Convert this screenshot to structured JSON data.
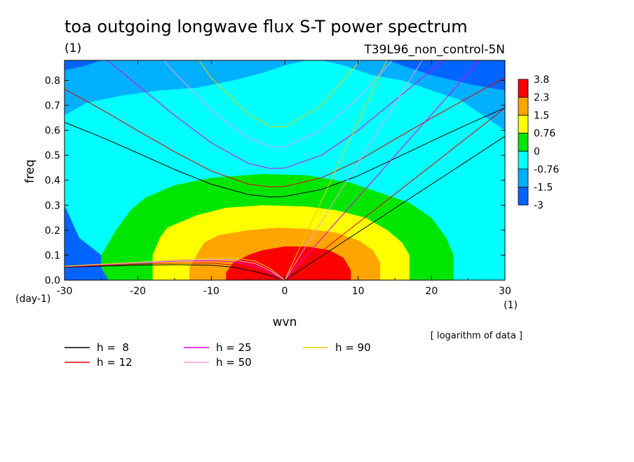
{
  "chart_data": {
    "type": "heatmap",
    "title": "toa outgoing longwave flux S-T power spectrum",
    "subtitle_left": "(1)",
    "subtitle_right": "T39L96_non_control-5N",
    "xlabel": "wvn",
    "ylabel": "freq",
    "x_unit": "(1)",
    "y_unit": "(day-1)",
    "xlim": [
      -30,
      30
    ],
    "ylim": [
      0,
      0.88
    ],
    "x_ticks": [
      -30,
      -20,
      -10,
      0,
      10,
      20,
      30
    ],
    "x_tick_labels": [
      "-30",
      "-20",
      "-10",
      "0",
      "10",
      "20",
      "30"
    ],
    "y_ticks": [
      0.0,
      0.1,
      0.2,
      0.3,
      0.4,
      0.5,
      0.6,
      0.7,
      0.8
    ],
    "y_tick_labels": [
      "0.0",
      "0.1",
      "0.2",
      "0.3",
      "0.4",
      "0.5",
      "0.6",
      "0.7",
      "0.8"
    ],
    "note": "[ logarithm of data ]",
    "colorbar": {
      "labels": [
        "3.8",
        "2.3",
        "1.5",
        "0.76",
        "0",
        "-0.76",
        "-1.5",
        "-3"
      ],
      "colors": [
        "#ff0000",
        "#ffa500",
        "#ffff00",
        "#00e600",
        "#00ffff",
        "#00b0ff",
        "#0064ff"
      ]
    },
    "contour_levels": [
      {
        "level": -0.76,
        "points": [
          [
            -30,
            0.88
          ],
          [
            -30,
            0.3
          ],
          [
            -28,
            0.17
          ],
          [
            -25,
            0.1
          ],
          [
            -24,
            0.05
          ],
          [
            -23,
            0.0
          ],
          [
            30,
            0.0
          ],
          [
            30,
            0.88
          ]
        ]
      },
      {
        "level": -1.5,
        "points": [
          [
            -30,
            0.88
          ],
          [
            -30,
            0.66
          ],
          [
            -27,
            0.71
          ],
          [
            -22,
            0.74
          ],
          [
            -17,
            0.76
          ],
          [
            -12,
            0.77
          ],
          [
            -7,
            0.8
          ],
          [
            -3,
            0.83
          ],
          [
            0,
            0.86
          ],
          [
            3,
            0.88
          ]
        ]
      },
      {
        "level": -1.5,
        "points": [
          [
            30,
            0.88
          ],
          [
            30,
            0.6
          ],
          [
            27,
            0.66
          ],
          [
            24,
            0.72
          ],
          [
            20,
            0.76
          ],
          [
            16,
            0.8
          ],
          [
            12,
            0.82
          ],
          [
            8,
            0.86
          ],
          [
            5,
            0.88
          ]
        ]
      },
      {
        "level": -3,
        "points": [
          [
            -30,
            0.88
          ],
          [
            -30,
            0.84
          ],
          [
            -27,
            0.86
          ],
          [
            -25,
            0.88
          ]
        ]
      },
      {
        "level": -3,
        "points": [
          [
            14,
            0.88
          ],
          [
            17,
            0.85
          ],
          [
            20,
            0.82
          ],
          [
            23,
            0.8
          ],
          [
            26,
            0.78
          ],
          [
            30,
            0.76
          ],
          [
            30,
            0.88
          ]
        ]
      },
      {
        "level": 0,
        "points": [
          [
            -24,
            0.0
          ],
          [
            -25,
            0.05
          ],
          [
            -25,
            0.1
          ],
          [
            -23,
            0.2
          ],
          [
            -21,
            0.28
          ],
          [
            -19,
            0.33
          ],
          [
            -15,
            0.38
          ],
          [
            -10,
            0.41
          ],
          [
            -3,
            0.425
          ],
          [
            3,
            0.42
          ],
          [
            9,
            0.39
          ],
          [
            14,
            0.34
          ],
          [
            17,
            0.31
          ],
          [
            20,
            0.25
          ],
          [
            22,
            0.17
          ],
          [
            23,
            0.1
          ],
          [
            23,
            0.0
          ]
        ]
      },
      {
        "level": 0.76,
        "points": [
          [
            -18,
            0.0
          ],
          [
            -18,
            0.1
          ],
          [
            -17,
            0.17
          ],
          [
            -16,
            0.21
          ],
          [
            -12,
            0.26
          ],
          [
            -8,
            0.29
          ],
          [
            -3,
            0.3
          ],
          [
            3,
            0.295
          ],
          [
            7,
            0.28
          ],
          [
            11,
            0.25
          ],
          [
            14,
            0.2
          ],
          [
            16,
            0.15
          ],
          [
            17,
            0.1
          ],
          [
            17,
            0.0
          ]
        ]
      },
      {
        "level": 1.5,
        "points": [
          [
            -13,
            0.0
          ],
          [
            -13,
            0.05
          ],
          [
            -12,
            0.1
          ],
          [
            -11,
            0.15
          ],
          [
            -9,
            0.18
          ],
          [
            -5,
            0.2
          ],
          [
            -1,
            0.21
          ],
          [
            3,
            0.205
          ],
          [
            7,
            0.19
          ],
          [
            10,
            0.16
          ],
          [
            12,
            0.12
          ],
          [
            13,
            0.07
          ],
          [
            13,
            0.0
          ]
        ]
      },
      {
        "level": 2.3,
        "points": [
          [
            -8,
            0.0
          ],
          [
            -8,
            0.03
          ],
          [
            -7,
            0.07
          ],
          [
            -5,
            0.1
          ],
          [
            -3,
            0.12
          ],
          [
            0,
            0.135
          ],
          [
            3,
            0.135
          ],
          [
            6,
            0.12
          ],
          [
            8,
            0.09
          ],
          [
            9,
            0.04
          ],
          [
            9,
            0.0
          ]
        ]
      }
    ],
    "series": [
      {
        "name": "h =  8",
        "color": "#000000",
        "curves": [
          [
            [
              -30,
              0.632
            ],
            [
              -25,
              0.573
            ],
            [
              -20,
              0.509
            ],
            [
              -15,
              0.443
            ],
            [
              -10,
              0.384
            ],
            [
              -5,
              0.343
            ],
            [
              -2,
              0.333
            ],
            [
              0,
              0.335
            ],
            [
              5,
              0.363
            ],
            [
              10,
              0.418
            ],
            [
              15,
              0.487
            ],
            [
              20,
              0.557
            ],
            [
              25,
              0.625
            ],
            [
              30,
              0.69
            ]
          ],
          [
            [
              -30,
              0.052
            ],
            [
              -25,
              0.056
            ],
            [
              -20,
              0.06
            ],
            [
              -15,
              0.062
            ],
            [
              -10,
              0.06
            ],
            [
              -7,
              0.052
            ],
            [
              -4,
              0.034
            ],
            [
              -2,
              0.018
            ],
            [
              0,
              0.0
            ]
          ],
          [
            [
              0,
              0
            ],
            [
              30,
              0.576
            ]
          ]
        ]
      },
      {
        "name": "h = 12",
        "color": "#e00000",
        "curves": [
          [
            [
              -30,
              0.765
            ],
            [
              -25,
              0.684
            ],
            [
              -20,
              0.598
            ],
            [
              -15,
              0.514
            ],
            [
              -10,
              0.437
            ],
            [
              -5,
              0.385
            ],
            [
              -2,
              0.373
            ],
            [
              0,
              0.375
            ],
            [
              5,
              0.41
            ],
            [
              10,
              0.478
            ],
            [
              15,
              0.564
            ],
            [
              20,
              0.649
            ],
            [
              25,
              0.731
            ],
            [
              30,
              0.811
            ]
          ],
          [
            [
              -30,
              0.053
            ],
            [
              -25,
              0.059
            ],
            [
              -20,
              0.064
            ],
            [
              -15,
              0.068
            ],
            [
              -10,
              0.068
            ],
            [
              -7,
              0.061
            ],
            [
              -4,
              0.042
            ],
            [
              -2,
              0.022
            ],
            [
              0,
              0.0
            ]
          ],
          [
            [
              0,
              0
            ],
            [
              30,
              0.689
            ]
          ]
        ]
      },
      {
        "name": "h = 25",
        "color": "#e000e0",
        "curves": [
          [
            [
              -30,
              1.02
            ],
            [
              -25,
              0.9
            ],
            [
              -20,
              0.78
            ],
            [
              -15,
              0.66
            ],
            [
              -10,
              0.55
            ],
            [
              -5,
              0.468
            ],
            [
              -2,
              0.447
            ],
            [
              0,
              0.449
            ],
            [
              5,
              0.5
            ],
            [
              10,
              0.6
            ],
            [
              15,
              0.72
            ],
            [
              20,
              0.84
            ],
            [
              25,
              0.96
            ],
            [
              30,
              1.07
            ]
          ],
          [
            [
              -30,
              0.055
            ],
            [
              -25,
              0.062
            ],
            [
              -20,
              0.068
            ],
            [
              -15,
              0.075
            ],
            [
              -10,
              0.078
            ],
            [
              -7,
              0.073
            ],
            [
              -4,
              0.055
            ],
            [
              -2,
              0.03
            ],
            [
              0,
              0.0
            ]
          ],
          [
            [
              0,
              0
            ],
            [
              30,
              0.995
            ]
          ]
        ]
      },
      {
        "name": "h = 50",
        "color": "#e8a0e8",
        "curves": [
          [
            [
              -30,
              1.32
            ],
            [
              -20,
              1.0
            ],
            [
              -15,
              0.83
            ],
            [
              -10,
              0.68
            ],
            [
              -5,
              0.57
            ],
            [
              -2,
              0.535
            ],
            [
              0,
              0.534
            ],
            [
              5,
              0.6
            ],
            [
              10,
              0.73
            ],
            [
              15,
              0.89
            ],
            [
              20,
              1.06
            ],
            [
              30,
              1.4
            ]
          ],
          [
            [
              -30,
              0.055
            ],
            [
              -25,
              0.063
            ],
            [
              -20,
              0.07
            ],
            [
              -15,
              0.078
            ],
            [
              -10,
              0.083
            ],
            [
              -7,
              0.082
            ],
            [
              -4,
              0.066
            ],
            [
              -2,
              0.038
            ],
            [
              0,
              0.0
            ]
          ],
          [
            [
              0,
              0
            ],
            [
              20,
              0.94
            ]
          ]
        ]
      },
      {
        "name": "h = 90",
        "color": "#e6d000",
        "curves": [
          [
            [
              -20,
              1.25
            ],
            [
              -15,
              1.02
            ],
            [
              -10,
              0.81
            ],
            [
              -5,
              0.665
            ],
            [
              -2,
              0.615
            ],
            [
              0,
              0.613
            ],
            [
              5,
              0.7
            ],
            [
              10,
              0.87
            ],
            [
              15,
              1.08
            ],
            [
              20,
              1.3
            ]
          ],
          [
            [
              -30,
              0.056
            ],
            [
              -25,
              0.064
            ],
            [
              -20,
              0.072
            ],
            [
              -15,
              0.081
            ],
            [
              -10,
              0.088
            ],
            [
              -7,
              0.09
            ],
            [
              -4,
              0.076
            ],
            [
              -2,
              0.046
            ],
            [
              0,
              0.0
            ]
          ],
          [
            [
              0,
              0
            ],
            [
              15,
              0.95
            ]
          ]
        ]
      }
    ]
  }
}
